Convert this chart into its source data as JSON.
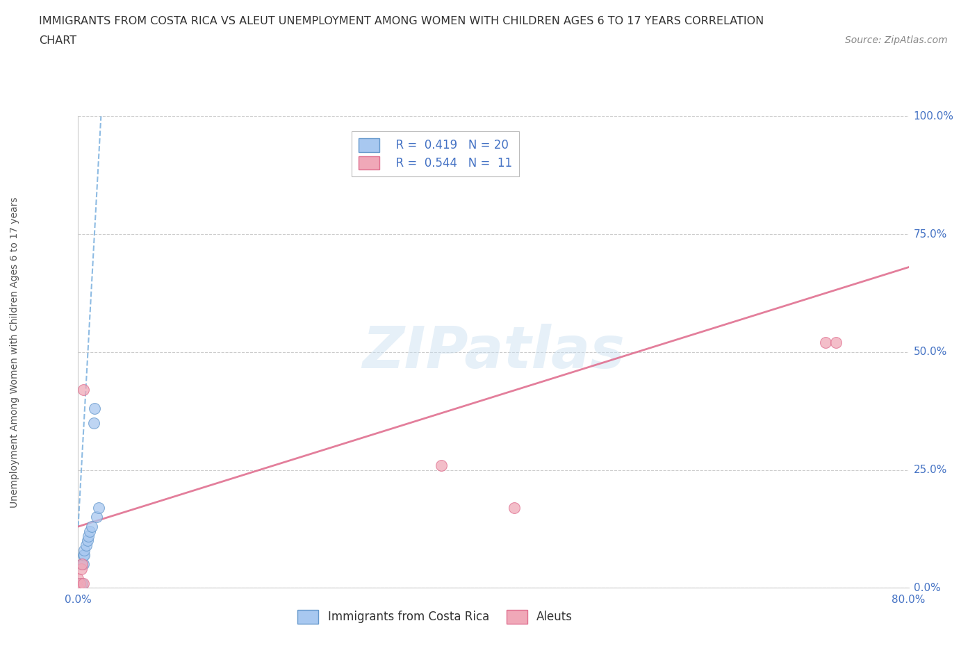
{
  "title_line1": "IMMIGRANTS FROM COSTA RICA VS ALEUT UNEMPLOYMENT AMONG WOMEN WITH CHILDREN AGES 6 TO 17 YEARS CORRELATION",
  "title_line2": "CHART",
  "source_text": "Source: ZipAtlas.com",
  "ylabel": "Unemployment Among Women with Children Ages 6 to 17 years",
  "xlim": [
    0.0,
    0.8
  ],
  "ylim": [
    0.0,
    1.0
  ],
  "ytick_values": [
    0.0,
    0.25,
    0.5,
    0.75,
    1.0
  ],
  "ytick_labels": [
    "0.0%",
    "25.0%",
    "50.0%",
    "75.0%",
    "100.0%"
  ],
  "xtick_values": [
    0.0,
    0.8
  ],
  "xtick_labels": [
    "0.0%",
    "80.0%"
  ],
  "grid_color": "#cccccc",
  "background_color": "#ffffff",
  "watermark_text": "ZIPatlas",
  "legend_r1": "R =  0.419   N = 20",
  "legend_r2": "R =  0.544   N =  11",
  "legend_label1": "Immigrants from Costa Rica",
  "legend_label2": "Aleuts",
  "scatter_blue": "#a8c8f0",
  "edge_blue": "#6699cc",
  "scatter_pink": "#f0a8b8",
  "edge_pink": "#e07090",
  "line_blue_color": "#7ab0de",
  "line_pink_color": "#e07090",
  "costa_rica_x": [
    0.0,
    0.0,
    0.0,
    0.003,
    0.003,
    0.004,
    0.004,
    0.005,
    0.005,
    0.006,
    0.006,
    0.008,
    0.009,
    0.01,
    0.011,
    0.013,
    0.015,
    0.016,
    0.018,
    0.02
  ],
  "costa_rica_y": [
    0.0,
    0.0,
    0.01,
    0.0,
    0.01,
    0.01,
    0.05,
    0.05,
    0.07,
    0.07,
    0.08,
    0.09,
    0.1,
    0.11,
    0.12,
    0.13,
    0.35,
    0.38,
    0.15,
    0.17
  ],
  "aleuts_x": [
    0.0,
    0.0,
    0.002,
    0.003,
    0.004,
    0.005,
    0.35,
    0.42,
    0.72,
    0.73,
    0.005
  ],
  "aleuts_y": [
    0.0,
    0.02,
    0.01,
    0.04,
    0.05,
    0.42,
    0.26,
    0.17,
    0.52,
    0.52,
    0.01
  ],
  "blue_trend_x": [
    0.0,
    0.022
  ],
  "blue_trend_y": [
    0.13,
    1.0
  ],
  "pink_trend_x": [
    0.0,
    0.8
  ],
  "pink_trend_y": [
    0.13,
    0.68
  ],
  "title_fontsize": 11.5,
  "axis_label_fontsize": 10,
  "tick_fontsize": 11,
  "legend_fontsize": 12,
  "source_fontsize": 10
}
